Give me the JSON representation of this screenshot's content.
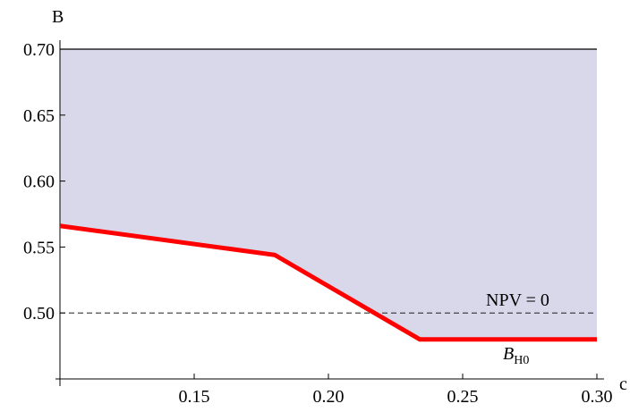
{
  "chart_data": {
    "type": "line",
    "x_label": "c",
    "y_label": "B",
    "x": [
      0.1,
      0.18,
      0.234,
      0.3
    ],
    "series": [
      {
        "name": null,
        "color": "#ff0000",
        "values": [
          0.566,
          0.544,
          0.48,
          0.48
        ]
      }
    ],
    "fill_above_color": "#d8d8ea",
    "xlim": [
      0.1,
      0.3
    ],
    "ylim": [
      0.45,
      0.7
    ],
    "xticks": [
      0.15,
      {
        "value": 0.2,
        "label": "0.20"
      },
      0.25,
      {
        "value": 0.3,
        "label": "0.30"
      }
    ],
    "yticks": [
      {
        "value": 0.5,
        "label": "0.50"
      },
      0.55,
      {
        "value": 0.6,
        "label": "0.60"
      },
      0.65,
      {
        "value": 0.7,
        "label": "0.70"
      }
    ],
    "reference_line": {
      "value": 0.5,
      "label": "NPV = 0"
    },
    "top_line": 0.7,
    "curve_label": {
      "main": "B",
      "sub": "H0",
      "x": 0.265,
      "y": 0.465
    }
  }
}
